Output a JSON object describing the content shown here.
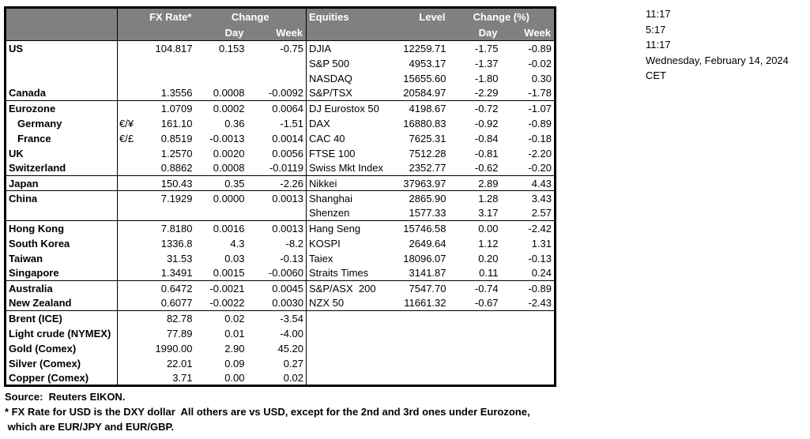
{
  "clock": {
    "lines": [
      "11:17",
      "5:17",
      "11:17",
      "Wednesday, February 14, 2024",
      "CET"
    ]
  },
  "table": {
    "header": {
      "fx_rate": "FX Rate*",
      "change": "Change",
      "day": "Day",
      "week": "Week",
      "equities": "Equities",
      "level": "Level",
      "change_pct": "Change (%)",
      "day2": "Day",
      "week2": "Week"
    },
    "rows": [
      {
        "l_name": "US",
        "l_sym": "",
        "l_fx": "104.817",
        "l_day": "0.153",
        "l_week": "-0.75",
        "r_name": "DJIA",
        "r_level": "12259.71",
        "r_day": "-1.75",
        "r_week": "-0.89",
        "section": false,
        "indent": false
      },
      {
        "l_name": "",
        "l_sym": "",
        "l_fx": "",
        "l_day": "",
        "l_week": "",
        "r_name": "S&P 500",
        "r_level": "4953.17",
        "r_day": "-1.37",
        "r_week": "-0.02",
        "section": false,
        "indent": false
      },
      {
        "l_name": "",
        "l_sym": "",
        "l_fx": "",
        "l_day": "",
        "l_week": "",
        "r_name": "NASDAQ",
        "r_level": "15655.60",
        "r_day": "-1.80",
        "r_week": "0.30",
        "section": false,
        "indent": false
      },
      {
        "l_name": "Canada",
        "l_sym": "",
        "l_fx": "1.3556",
        "l_day": "0.0008",
        "l_week": "-0.0092",
        "r_name": "S&P/TSX",
        "r_level": "20584.97",
        "r_day": "-2.29",
        "r_week": "-1.78",
        "section": false,
        "indent": false
      },
      {
        "l_name": "Eurozone",
        "l_sym": "",
        "l_fx": "1.0709",
        "l_day": "0.0002",
        "l_week": "0.0064",
        "r_name": "DJ Eurostox 50",
        "r_level": "4198.67",
        "r_day": "-0.72",
        "r_week": "-1.07",
        "section": true,
        "indent": false
      },
      {
        "l_name": "Germany",
        "l_sym": "€/¥",
        "l_fx": "161.10",
        "l_day": "0.36",
        "l_week": "-1.51",
        "r_name": "DAX",
        "r_level": "16880.83",
        "r_day": "-0.92",
        "r_week": "-0.89",
        "section": false,
        "indent": true
      },
      {
        "l_name": "France",
        "l_sym": "€/£",
        "l_fx": "0.8519",
        "l_day": "-0.0013",
        "l_week": "0.0014",
        "r_name": "CAC 40",
        "r_level": "7625.31",
        "r_day": "-0.84",
        "r_week": "-0.18",
        "section": false,
        "indent": true
      },
      {
        "l_name": "UK",
        "l_sym": "",
        "l_fx": "1.2570",
        "l_day": "0.0020",
        "l_week": "0.0056",
        "r_name": "FTSE 100",
        "r_level": "7512.28",
        "r_day": "-0.81",
        "r_week": "-2.20",
        "section": false,
        "indent": false
      },
      {
        "l_name": "Switzerland",
        "l_sym": "",
        "l_fx": "0.8862",
        "l_day": "0.0008",
        "l_week": "-0.0119",
        "r_name": "Swiss Mkt Index",
        "r_level": "2352.77",
        "r_day": "-0.62",
        "r_week": "-0.20",
        "section": false,
        "indent": false
      },
      {
        "l_name": "Japan",
        "l_sym": "",
        "l_fx": "150.43",
        "l_day": "0.35",
        "l_week": "-2.26",
        "r_name": "Nikkei",
        "r_level": "37963.97",
        "r_day": "2.89",
        "r_week": "4.43",
        "section": true,
        "indent": false
      },
      {
        "l_name": "China",
        "l_sym": "",
        "l_fx": "7.1929",
        "l_day": "0.0000",
        "l_week": "0.0013",
        "r_name": "Shanghai",
        "r_level": "2865.90",
        "r_day": "1.28",
        "r_week": "3.43",
        "section": true,
        "indent": false
      },
      {
        "l_name": "",
        "l_sym": "",
        "l_fx": "",
        "l_day": "",
        "l_week": "",
        "r_name": "Shenzen",
        "r_level": "1577.33",
        "r_day": "3.17",
        "r_week": "2.57",
        "section": false,
        "indent": false
      },
      {
        "l_name": "Hong Kong",
        "l_sym": "",
        "l_fx": "7.8180",
        "l_day": "0.0016",
        "l_week": "0.0013",
        "r_name": "Hang Seng",
        "r_level": "15746.58",
        "r_day": "0.00",
        "r_week": "-2.42",
        "section": true,
        "indent": false
      },
      {
        "l_name": "South Korea",
        "l_sym": "",
        "l_fx": "1336.8",
        "l_day": "4.3",
        "l_week": "-8.2",
        "r_name": "KOSPI",
        "r_level": "2649.64",
        "r_day": "1.12",
        "r_week": "1.31",
        "section": false,
        "indent": false
      },
      {
        "l_name": "Taiwan",
        "l_sym": "",
        "l_fx": "31.53",
        "l_day": "0.03",
        "l_week": "-0.13",
        "r_name": "Taiex",
        "r_level": "18096.07",
        "r_day": "0.20",
        "r_week": "-0.13",
        "section": false,
        "indent": false
      },
      {
        "l_name": "Singapore",
        "l_sym": "",
        "l_fx": "1.3491",
        "l_day": "0.0015",
        "l_week": "-0.0060",
        "r_name": "Straits Times",
        "r_level": "3141.87",
        "r_day": "0.11",
        "r_week": "0.24",
        "section": false,
        "indent": false
      },
      {
        "l_name": "Australia",
        "l_sym": "",
        "l_fx": "0.6472",
        "l_day": "-0.0021",
        "l_week": "0.0045",
        "r_name": "S&P/ASX  200",
        "r_level": "7547.70",
        "r_day": "-0.74",
        "r_week": "-0.89",
        "section": true,
        "indent": false
      },
      {
        "l_name": "New Zealand",
        "l_sym": "",
        "l_fx": "0.6077",
        "l_day": "-0.0022",
        "l_week": "0.0030",
        "r_name": "NZX 50",
        "r_level": "11661.32",
        "r_day": "-0.67",
        "r_week": "-2.43",
        "section": false,
        "indent": false
      },
      {
        "l_name": "Brent (ICE)",
        "l_sym": "",
        "l_fx": "82.78",
        "l_day": "0.02",
        "l_week": "-3.54",
        "r_name": "",
        "r_level": "",
        "r_day": "",
        "r_week": "",
        "section": true,
        "indent": false
      },
      {
        "l_name": "Light crude (NYMEX)",
        "l_sym": "",
        "l_fx": "77.89",
        "l_day": "0.01",
        "l_week": "-4.00",
        "r_name": "",
        "r_level": "",
        "r_day": "",
        "r_week": "",
        "section": false,
        "indent": false
      },
      {
        "l_name": "Gold (Comex)",
        "l_sym": "",
        "l_fx": "1990.00",
        "l_day": "2.90",
        "l_week": "45.20",
        "r_name": "",
        "r_level": "",
        "r_day": "",
        "r_week": "",
        "section": false,
        "indent": false
      },
      {
        "l_name": "Silver (Comex)",
        "l_sym": "",
        "l_fx": "22.01",
        "l_day": "0.09",
        "l_week": "0.27",
        "r_name": "",
        "r_level": "",
        "r_day": "",
        "r_week": "",
        "section": false,
        "indent": false
      },
      {
        "l_name": "Copper (Comex)",
        "l_sym": "",
        "l_fx": "3.71",
        "l_day": "0.00",
        "l_week": "0.02",
        "r_name": "",
        "r_level": "",
        "r_day": "",
        "r_week": "",
        "section": false,
        "indent": false
      }
    ]
  },
  "footer": {
    "source": "Source:  Reuters EIKON.",
    "note1": "* FX Rate for USD is the DXY dollar  All others are vs USD, except for the 2nd and 3rd ones under Eurozone,",
    "note2": " which are EUR/JPY and EUR/GBP."
  },
  "colors": {
    "header_bg": "#808080",
    "header_text": "#ffffff",
    "border": "#000000",
    "body_text": "#000000"
  }
}
